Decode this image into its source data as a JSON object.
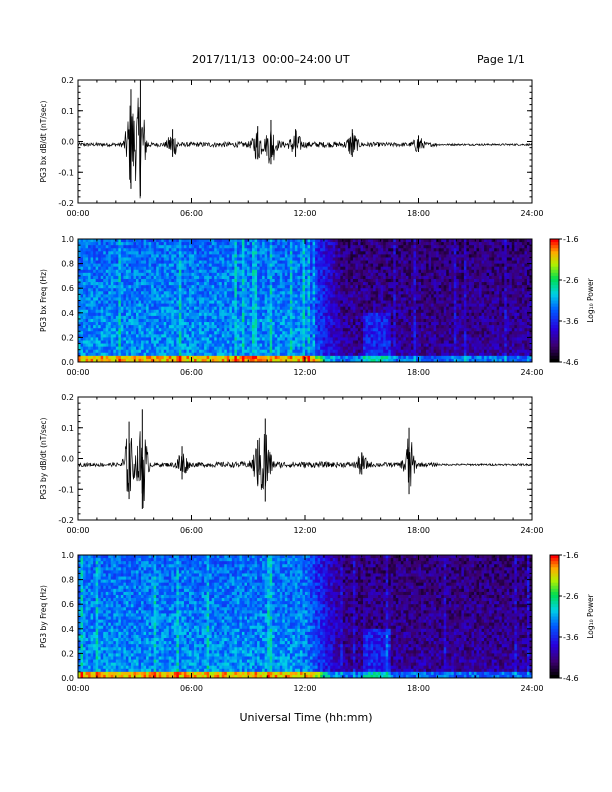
{
  "header": {
    "title": "2017/11/13  00:00–24:00 UT",
    "page": "Page 1/1"
  },
  "footer": {
    "xlabel": "Universal Time (hh:mm)"
  },
  "colors": {
    "trace": "#000000",
    "background": "#ffffff"
  },
  "chart_data": [
    {
      "type": "line",
      "ylabel": "PG3 bx dB/dt (nT/sec)",
      "x_ticks": [
        "00:00",
        "06:00",
        "12:00",
        "18:00",
        "24:00"
      ],
      "y_ticks": [
        "0.2",
        "0.1",
        "0.0",
        "-0.1",
        "-0.2"
      ],
      "xlim": [
        0,
        24
      ],
      "ylim": [
        -0.2,
        0.2
      ],
      "baseline": -0.01,
      "bursts": [
        {
          "t": 2.8,
          "amp": 0.18
        },
        {
          "t": 3.3,
          "amp": 0.21
        },
        {
          "t": 5.0,
          "amp": 0.05
        },
        {
          "t": 9.5,
          "amp": 0.06
        },
        {
          "t": 10.2,
          "amp": 0.08
        },
        {
          "t": 11.5,
          "amp": 0.05
        },
        {
          "t": 14.5,
          "amp": 0.05
        },
        {
          "t": 18.0,
          "amp": 0.03
        }
      ]
    },
    {
      "type": "heatmap",
      "ylabel": "PG3 bx Freq (Hz)",
      "x_ticks": [
        "00:00",
        "06:00",
        "12:00",
        "18:00",
        "24:00"
      ],
      "y_ticks": [
        "1.0",
        "0.8",
        "0.6",
        "0.4",
        "0.2",
        "0.0"
      ],
      "xlim": [
        0,
        24
      ],
      "ylim": [
        0,
        1.0
      ],
      "colorbar": {
        "label": "Log₁₀ Power",
        "ticks": [
          "-1.6",
          "-2.6",
          "-3.6",
          "-4.6"
        ],
        "range": [
          -4.6,
          -1.6
        ]
      }
    },
    {
      "type": "line",
      "ylabel": "PG3 by dB/dt (nT/sec)",
      "x_ticks": [
        "00:00",
        "06:00",
        "12:00",
        "18:00",
        "24:00"
      ],
      "y_ticks": [
        "0.2",
        "0.1",
        "0.0",
        "-0.1",
        "-0.2"
      ],
      "xlim": [
        0,
        24
      ],
      "ylim": [
        -0.2,
        0.2
      ],
      "baseline": -0.02,
      "bursts": [
        {
          "t": 2.7,
          "amp": 0.14
        },
        {
          "t": 3.4,
          "amp": 0.18
        },
        {
          "t": 5.5,
          "amp": 0.06
        },
        {
          "t": 9.5,
          "amp": 0.08
        },
        {
          "t": 9.9,
          "amp": 0.15
        },
        {
          "t": 15.0,
          "amp": 0.04
        },
        {
          "t": 17.5,
          "amp": 0.12
        }
      ]
    },
    {
      "type": "heatmap",
      "ylabel": "PG3 by Freq (Hz)",
      "x_ticks": [
        "00:00",
        "06:00",
        "12:00",
        "18:00",
        "24:00"
      ],
      "y_ticks": [
        "1.0",
        "0.8",
        "0.6",
        "0.4",
        "0.2",
        "0.0"
      ],
      "xlim": [
        0,
        24
      ],
      "ylim": [
        0,
        1.0
      ],
      "colorbar": {
        "label": "Log₁₀ Power",
        "ticks": [
          "-1.6",
          "-2.6",
          "-3.6",
          "-4.6"
        ],
        "range": [
          -4.6,
          -1.6
        ]
      }
    }
  ]
}
